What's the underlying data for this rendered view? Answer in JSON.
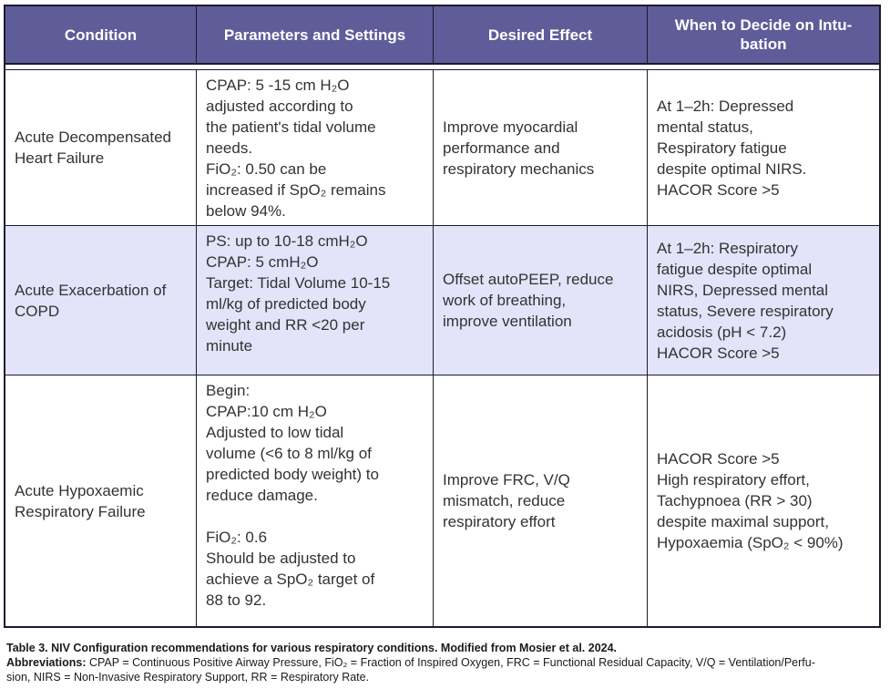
{
  "colors": {
    "header_bg": "#5e5c99",
    "header_text": "#ffffff",
    "row_highlight_bg": "#e3e3fa",
    "border": "#1c1b2e",
    "body_text": "#333333",
    "caption_text": "#1a1a1a",
    "background": "#ffffff"
  },
  "table": {
    "headers": [
      "Condition",
      "Parameters and Settings",
      "Desired Effect",
      "When to Decide on Intu-\nbation"
    ],
    "rows": [
      {
        "condition": [
          "Acute Decompensated",
          "Heart Failure"
        ],
        "params": [
          "CPAP: 5 -15 cm H₂O",
          "adjusted according to",
          "the patient's tidal volume",
          "needs.",
          "FiO₂: 0.50 can be",
          "increased if SpO₂ remains",
          "below 94%."
        ],
        "effect": [
          "Improve myocardial",
          "performance and",
          "respiratory mechanics"
        ],
        "intubation": [
          "At 1–2h: Depressed",
          "mental status,",
          "Respiratory fatigue",
          "despite optimal NIRS.",
          "HACOR Score >5"
        ],
        "highlighted": false
      },
      {
        "condition": [
          "Acute Exacerbation of",
          "COPD"
        ],
        "params": [
          "PS: up to 10-18 cmH₂O",
          "CPAP: 5 cmH₂O",
          "Target: Tidal Volume 10-15",
          "ml/kg of predicted body",
          "weight and RR <20 per",
          "minute"
        ],
        "effect": [
          "Offset autoPEEP, reduce",
          "work of breathing,",
          "improve ventilation"
        ],
        "intubation": [
          "At 1–2h: Respiratory",
          "fatigue despite optimal",
          "NIRS, Depressed mental",
          "status, Severe respiratory",
          "acidosis (pH < 7.2)",
          "HACOR Score >5"
        ],
        "highlighted": true
      },
      {
        "condition": [
          "Acute Hypoxaemic",
          "Respiratory Failure"
        ],
        "params": [
          "Begin:",
          "CPAP:10 cm H₂O",
          "Adjusted to low tidal",
          "volume (<6 to 8 ml/kg of",
          "predicted body weight) to",
          "reduce damage.",
          "",
          "FiO₂: 0.6",
          "Should be adjusted to",
          "achieve a SpO₂ target of",
          "88 to 92."
        ],
        "effect": [
          "Improve FRC, V/Q",
          "mismatch, reduce",
          "respiratory effort"
        ],
        "intubation": [
          "HACOR Score >5",
          "High respiratory effort,",
          "Tachypnoea (RR > 30)",
          "despite maximal support,",
          "Hypoxaemia (SpO₂ < 90%)"
        ],
        "highlighted": false
      }
    ]
  },
  "caption": {
    "title": "Table 3. NIV Configuration recommendations for various respiratory conditions. Modified from Mosier et al. 2024.",
    "abbreviations_label": "Abbreviations: ",
    "abbreviations_lines": [
      "CPAP = Continuous Positive Airway Pressure, FiO₂ = Fraction of Inspired Oxygen, FRC = Functional Residual Capacity, V/Q = Ventilation/Perfu-",
      "sion, NIRS = Non-Invasive Respiratory Support, RR = Respiratory Rate."
    ]
  }
}
